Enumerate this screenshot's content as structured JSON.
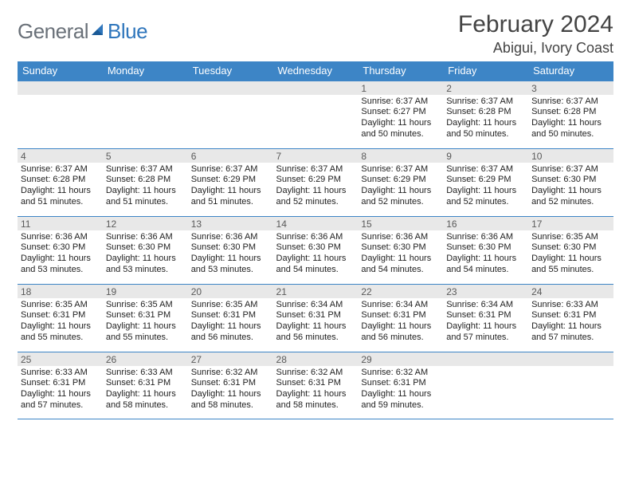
{
  "logo": {
    "word1": "General",
    "word2": "Blue",
    "word1_color": "#6a7179",
    "word2_color": "#2f76bc"
  },
  "title": "February 2024",
  "subtitle": "Abigui, Ivory Coast",
  "colors": {
    "header_bg": "#3d85c6",
    "header_text": "#ffffff",
    "daynum_bg": "#e8e8e8",
    "daynum_text": "#5a5a5a",
    "body_text": "#222222",
    "rule": "#3d85c6",
    "page_bg": "#ffffff"
  },
  "fonts": {
    "title_fontsize": 30,
    "subtitle_fontsize": 18,
    "weekday_fontsize": 13,
    "daynum_fontsize": 12,
    "details_fontsize": 11
  },
  "weekdays": [
    "Sunday",
    "Monday",
    "Tuesday",
    "Wednesday",
    "Thursday",
    "Friday",
    "Saturday"
  ],
  "first_weekday_index": 4,
  "days": [
    {
      "n": 1,
      "sunrise": "6:37 AM",
      "sunset": "6:27 PM",
      "daylight": "11 hours and 50 minutes."
    },
    {
      "n": 2,
      "sunrise": "6:37 AM",
      "sunset": "6:28 PM",
      "daylight": "11 hours and 50 minutes."
    },
    {
      "n": 3,
      "sunrise": "6:37 AM",
      "sunset": "6:28 PM",
      "daylight": "11 hours and 50 minutes."
    },
    {
      "n": 4,
      "sunrise": "6:37 AM",
      "sunset": "6:28 PM",
      "daylight": "11 hours and 51 minutes."
    },
    {
      "n": 5,
      "sunrise": "6:37 AM",
      "sunset": "6:28 PM",
      "daylight": "11 hours and 51 minutes."
    },
    {
      "n": 6,
      "sunrise": "6:37 AM",
      "sunset": "6:29 PM",
      "daylight": "11 hours and 51 minutes."
    },
    {
      "n": 7,
      "sunrise": "6:37 AM",
      "sunset": "6:29 PM",
      "daylight": "11 hours and 52 minutes."
    },
    {
      "n": 8,
      "sunrise": "6:37 AM",
      "sunset": "6:29 PM",
      "daylight": "11 hours and 52 minutes."
    },
    {
      "n": 9,
      "sunrise": "6:37 AM",
      "sunset": "6:29 PM",
      "daylight": "11 hours and 52 minutes."
    },
    {
      "n": 10,
      "sunrise": "6:37 AM",
      "sunset": "6:30 PM",
      "daylight": "11 hours and 52 minutes."
    },
    {
      "n": 11,
      "sunrise": "6:36 AM",
      "sunset": "6:30 PM",
      "daylight": "11 hours and 53 minutes."
    },
    {
      "n": 12,
      "sunrise": "6:36 AM",
      "sunset": "6:30 PM",
      "daylight": "11 hours and 53 minutes."
    },
    {
      "n": 13,
      "sunrise": "6:36 AM",
      "sunset": "6:30 PM",
      "daylight": "11 hours and 53 minutes."
    },
    {
      "n": 14,
      "sunrise": "6:36 AM",
      "sunset": "6:30 PM",
      "daylight": "11 hours and 54 minutes."
    },
    {
      "n": 15,
      "sunrise": "6:36 AM",
      "sunset": "6:30 PM",
      "daylight": "11 hours and 54 minutes."
    },
    {
      "n": 16,
      "sunrise": "6:36 AM",
      "sunset": "6:30 PM",
      "daylight": "11 hours and 54 minutes."
    },
    {
      "n": 17,
      "sunrise": "6:35 AM",
      "sunset": "6:30 PM",
      "daylight": "11 hours and 55 minutes."
    },
    {
      "n": 18,
      "sunrise": "6:35 AM",
      "sunset": "6:31 PM",
      "daylight": "11 hours and 55 minutes."
    },
    {
      "n": 19,
      "sunrise": "6:35 AM",
      "sunset": "6:31 PM",
      "daylight": "11 hours and 55 minutes."
    },
    {
      "n": 20,
      "sunrise": "6:35 AM",
      "sunset": "6:31 PM",
      "daylight": "11 hours and 56 minutes."
    },
    {
      "n": 21,
      "sunrise": "6:34 AM",
      "sunset": "6:31 PM",
      "daylight": "11 hours and 56 minutes."
    },
    {
      "n": 22,
      "sunrise": "6:34 AM",
      "sunset": "6:31 PM",
      "daylight": "11 hours and 56 minutes."
    },
    {
      "n": 23,
      "sunrise": "6:34 AM",
      "sunset": "6:31 PM",
      "daylight": "11 hours and 57 minutes."
    },
    {
      "n": 24,
      "sunrise": "6:33 AM",
      "sunset": "6:31 PM",
      "daylight": "11 hours and 57 minutes."
    },
    {
      "n": 25,
      "sunrise": "6:33 AM",
      "sunset": "6:31 PM",
      "daylight": "11 hours and 57 minutes."
    },
    {
      "n": 26,
      "sunrise": "6:33 AM",
      "sunset": "6:31 PM",
      "daylight": "11 hours and 58 minutes."
    },
    {
      "n": 27,
      "sunrise": "6:32 AM",
      "sunset": "6:31 PM",
      "daylight": "11 hours and 58 minutes."
    },
    {
      "n": 28,
      "sunrise": "6:32 AM",
      "sunset": "6:31 PM",
      "daylight": "11 hours and 58 minutes."
    },
    {
      "n": 29,
      "sunrise": "6:32 AM",
      "sunset": "6:31 PM",
      "daylight": "11 hours and 59 minutes."
    }
  ],
  "labels": {
    "sunrise": "Sunrise:",
    "sunset": "Sunset:",
    "daylight": "Daylight:"
  }
}
